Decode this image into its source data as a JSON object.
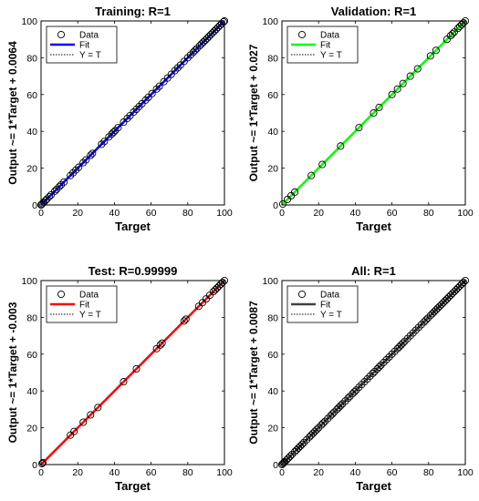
{
  "legend_labels": {
    "data": "Data",
    "fit": "Fit",
    "yt": "Y = T"
  },
  "chart_data": [
    {
      "type": "scatter",
      "title": "Training: R=1",
      "xlabel": "Target",
      "ylabel": "Output ~= 1*Target + 0.0064",
      "xlim": [
        0,
        100
      ],
      "ylim": [
        0,
        100
      ],
      "xticks": [
        0,
        20,
        40,
        60,
        80,
        100
      ],
      "yticks": [
        0,
        20,
        40,
        60,
        80,
        100
      ],
      "grid": false,
      "legend_position": "top-left",
      "fit_color": "#0000ff",
      "fit": {
        "slope": 1,
        "intercept": 0.0064
      },
      "points": [
        0,
        0.3,
        0.8,
        1.5,
        2.5,
        3.2,
        4.5,
        5.5,
        7.5,
        8.5,
        10,
        11,
        12.5,
        16,
        17.5,
        19,
        20.5,
        23,
        24.5,
        27,
        28,
        33,
        34.5,
        37,
        38.5,
        39.5,
        40.5,
        42,
        45,
        47,
        48.5,
        50.5,
        52,
        53.5,
        55,
        57,
        58.5,
        60.5,
        63,
        64.5,
        67,
        69,
        71,
        73,
        74.5,
        76,
        78,
        80,
        81.5,
        83,
        84,
        85,
        86.5,
        87.5,
        88.5,
        89.5,
        90.5,
        91.5,
        92.5,
        93.5,
        94.5,
        95.5,
        96.5,
        97.5,
        98.5,
        99.5,
        100
      ]
    },
    {
      "type": "scatter",
      "title": "Validation: R=1",
      "xlabel": "Target",
      "ylabel": "Output ~= 1*Target + 0.027",
      "xlim": [
        0,
        100
      ],
      "ylim": [
        0,
        100
      ],
      "xticks": [
        0,
        20,
        40,
        60,
        80,
        100
      ],
      "yticks": [
        0,
        20,
        40,
        60,
        80,
        100
      ],
      "grid": false,
      "legend_position": "top-left",
      "fit_color": "#00ff00",
      "fit": {
        "slope": 1,
        "intercept": 0.027
      },
      "points": [
        0.5,
        3,
        5,
        7,
        16,
        22,
        32,
        42,
        50,
        53,
        60,
        63,
        66,
        70,
        74,
        81,
        84,
        90,
        92,
        93,
        94,
        96,
        97,
        98,
        99,
        100
      ]
    },
    {
      "type": "scatter",
      "title": "Test: R=0.99999",
      "xlabel": "Target",
      "ylabel": "Output ~= 1*Target + -0.003",
      "xlim": [
        0,
        100
      ],
      "ylim": [
        0,
        100
      ],
      "xticks": [
        0,
        20,
        40,
        60,
        80,
        100
      ],
      "yticks": [
        0,
        20,
        40,
        60,
        80,
        100
      ],
      "grid": false,
      "legend_position": "top-left",
      "fit_color": "#ff0000",
      "fit": {
        "slope": 1,
        "intercept": -0.003
      },
      "points": [
        0.5,
        1,
        16,
        18,
        23,
        27,
        31,
        45,
        52,
        63,
        65,
        66,
        78,
        79,
        86,
        88,
        90,
        92,
        94,
        95,
        96,
        97,
        98,
        99,
        100
      ]
    },
    {
      "type": "scatter",
      "title": "All: R=1",
      "xlabel": "Target",
      "ylabel": "Output ~= 1*Target + 0.0087",
      "xlim": [
        0,
        100
      ],
      "ylim": [
        0,
        100
      ],
      "xticks": [
        0,
        20,
        40,
        60,
        80,
        100
      ],
      "yticks": [
        0,
        20,
        40,
        60,
        80,
        100
      ],
      "grid": false,
      "legend_position": "top-left",
      "fit_color": "#404040",
      "fit": {
        "slope": 1,
        "intercept": 0.0087
      },
      "points": [
        0,
        0.5,
        1,
        1.5,
        2.5,
        3.5,
        4.5,
        5.5,
        7,
        8,
        9,
        10,
        11,
        12,
        13.5,
        15,
        16,
        17,
        18,
        19,
        20,
        21.5,
        22.5,
        23.5,
        25,
        26.5,
        27.5,
        28.5,
        30,
        31,
        32,
        33,
        34.5,
        36,
        37,
        38.5,
        39.5,
        40.5,
        42,
        43.5,
        45,
        46.5,
        48,
        49.5,
        50.5,
        52,
        53,
        54,
        55.5,
        57,
        58.5,
        60,
        61.5,
        63,
        64,
        65,
        66,
        67,
        68.5,
        70,
        71.5,
        73,
        74.5,
        76,
        77.5,
        78.5,
        79.5,
        81,
        82,
        83,
        84,
        85,
        86,
        87,
        88,
        89,
        90,
        91,
        92,
        93,
        94,
        95,
        96,
        97,
        98,
        99,
        100
      ]
    }
  ]
}
